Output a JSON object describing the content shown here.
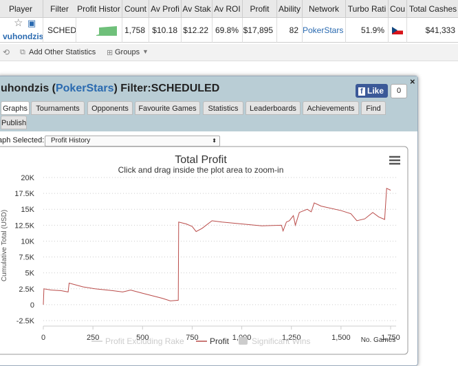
{
  "table": {
    "headers": [
      "Player",
      "Filter",
      "Profit Histor",
      "Count",
      "Av Profi",
      "Av Stak",
      "Av ROI",
      "Profit",
      "Ability",
      "Network",
      "Turbo Rati",
      "Cou",
      "Total Cashes"
    ],
    "row": [
      "vuhondzis",
      "SCHEDU",
      "",
      "1,758",
      "$10.18",
      "$12.22",
      "69.8%",
      "$17,895",
      "82",
      "PokerStars",
      "51.9%",
      "",
      "$41,333"
    ]
  },
  "toolbar": {
    "add": "Add Other Statistics",
    "groups": "Groups"
  },
  "dialog": {
    "title_pre": "uhondzis (",
    "title_network": "PokerStars",
    "title_post": ") Filter:SCHEDULED",
    "like": "Like",
    "like_count": "0",
    "tabs": [
      "Graphs",
      "Tournaments",
      "Opponents",
      "Favourite Games",
      "Statistics",
      "Leaderboards",
      "Achievements",
      "Find",
      "Publish"
    ],
    "graph_label": "aph Selected:",
    "graph_select": "Profit History"
  },
  "chart": {
    "type": "line",
    "title": "Total Profit",
    "subtitle": "Click and drag inside the plot area to zoom-in",
    "y_label": "Cumulative Total (USD)",
    "x_label": "No. Games",
    "xlim": [
      0,
      1750
    ],
    "ylim": [
      -2500,
      20000
    ],
    "xticks": [
      0,
      250,
      500,
      750,
      {
        "value": 1000,
        "label": "1,000"
      },
      {
        "value": 1250,
        "label": "1,250"
      },
      {
        "value": 1500,
        "label": "1,500"
      },
      {
        "value": 1750,
        "label": "1,750"
      }
    ],
    "yticks": [
      {
        "value": -2500,
        "label": "-2.5K"
      },
      0,
      {
        "value": 2500,
        "label": "2.5K"
      },
      {
        "value": 5000,
        "label": "5K"
      },
      {
        "value": 7500,
        "label": "7.5K"
      },
      {
        "value": 10000,
        "label": "10K"
      },
      {
        "value": 12500,
        "label": "12.5K"
      },
      {
        "value": 15000,
        "label": "15K"
      },
      {
        "value": 17500,
        "label": "17.5K"
      },
      {
        "value": 20000,
        "label": "20K"
      }
    ],
    "grid": true,
    "legend": [
      "Profit Excluding Rake",
      "Profit",
      "Significant Wins"
    ],
    "series": [
      {
        "name": "Profit",
        "color": "#b94a48",
        "x": [
          0,
          3,
          40,
          90,
          125,
          130,
          200,
          260,
          350,
          400,
          440,
          500,
          600,
          640,
          680,
          682,
          720,
          750,
          770,
          800,
          850,
          900,
          1000,
          1100,
          1200,
          1208,
          1225,
          1240,
          1260,
          1270,
          1290,
          1330,
          1350,
          1365,
          1400,
          1500,
          1550,
          1580,
          1620,
          1660,
          1690,
          1720,
          1730,
          1750
        ],
        "values": [
          0,
          2500,
          2300,
          2200,
          2000,
          3400,
          2800,
          2500,
          2200,
          2000,
          2300,
          1800,
          1000,
          600,
          700,
          13000,
          12700,
          12300,
          11500,
          12000,
          13200,
          13000,
          12700,
          12400,
          12500,
          11600,
          13000,
          13200,
          14000,
          12500,
          14500,
          15000,
          14600,
          16000,
          15500,
          14800,
          14300,
          13200,
          13500,
          14500,
          13800,
          13400,
          18300,
          18000
        ]
      }
    ]
  }
}
